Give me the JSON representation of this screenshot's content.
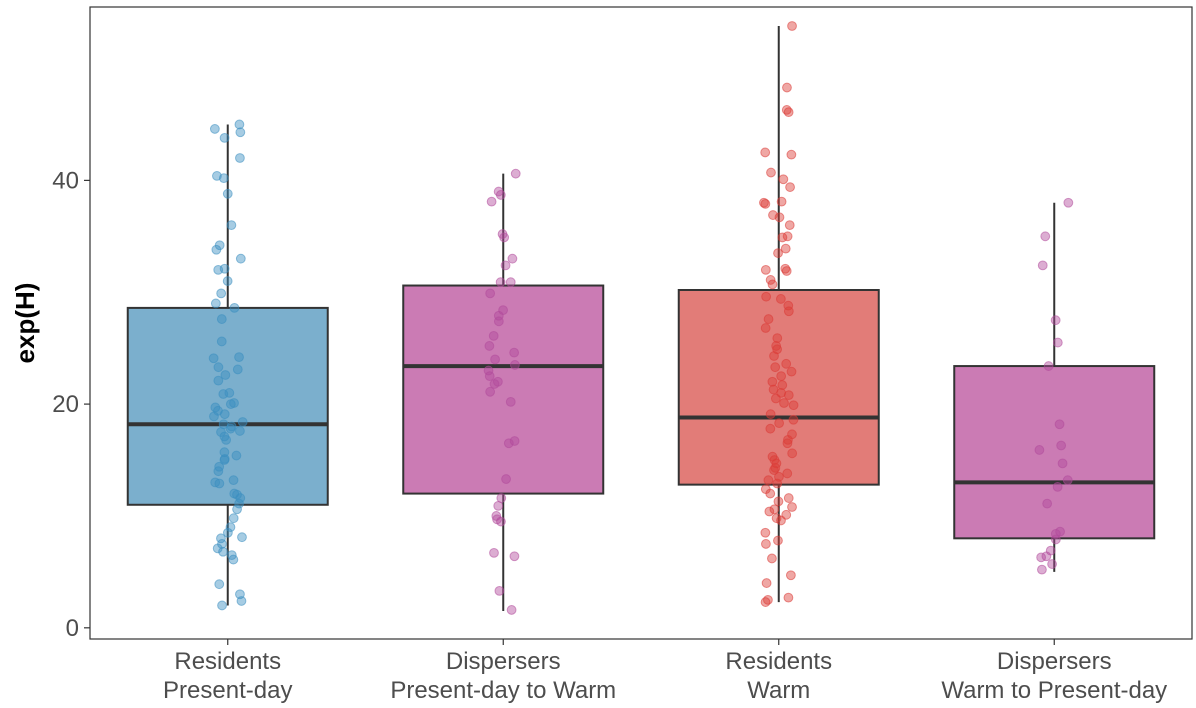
{
  "chart_data": {
    "type": "box",
    "title": "",
    "xlabel": "",
    "ylabel": "exp(H)",
    "ylim": [
      -1,
      55.5
    ],
    "yticks": [
      0,
      20,
      40
    ],
    "ytick_labels": [
      "0",
      "20",
      "40"
    ],
    "grid": false,
    "legend": "none",
    "categories": [
      {
        "line1": "Residents",
        "line2": "Present-day"
      },
      {
        "line1": "Dispersers",
        "line2": "Present-day to Warm"
      },
      {
        "line1": "Residents",
        "line2": "Warm"
      },
      {
        "line1": "Dispersers",
        "line2": "Warm to Present-day"
      }
    ],
    "series": [
      {
        "fill": "#7bafcd",
        "point_color": "#3a8ec0",
        "box": {
          "whisker_low": 2.0,
          "q1": 11.0,
          "median": 18.2,
          "q3": 28.6,
          "whisker_high": 45.0
        },
        "points": [
          45.0,
          44.3,
          44.6,
          43.8,
          42.0,
          40.4,
          40.2,
          38.8,
          36.0,
          34.2,
          33.8,
          33.0,
          32.1,
          32.0,
          31.0,
          29.9,
          29.0,
          28.6,
          27.6,
          25.6,
          24.1,
          24.2,
          23.3,
          23.1,
          22.6,
          22.1,
          21.0,
          20.9,
          20.1,
          20.0,
          19.7,
          19.4,
          19.1,
          18.9,
          18.4,
          18.2,
          18.0,
          17.8,
          17.6,
          17.5,
          17.1,
          16.8,
          15.7,
          15.4,
          15.1,
          15.0,
          14.4,
          14.0,
          13.2,
          13.0,
          12.9,
          12.0,
          11.9,
          11.6,
          11.1,
          10.6,
          9.8,
          9.0,
          8.5,
          8.1,
          8.0,
          7.5,
          7.1,
          6.8,
          6.5,
          6.1,
          3.9,
          3.0,
          2.4,
          2.0
        ]
      },
      {
        "fill": "#cb7bb4",
        "point_color": "#b14a9b",
        "box": {
          "whisker_low": 1.5,
          "q1": 12.0,
          "median": 23.4,
          "q3": 30.6,
          "whisker_high": 40.6
        },
        "points": [
          40.6,
          39.0,
          38.7,
          38.1,
          35.2,
          34.9,
          33.0,
          32.4,
          30.9,
          30.9,
          29.9,
          28.4,
          27.9,
          27.4,
          26.1,
          25.2,
          24.6,
          24.0,
          23.5,
          23.0,
          22.5,
          22.0,
          21.8,
          21.1,
          20.2,
          16.7,
          16.5,
          13.3,
          11.6,
          10.9,
          10.0,
          9.7,
          9.5,
          6.7,
          6.4,
          3.3,
          1.6
        ]
      },
      {
        "fill": "#e27c78",
        "point_color": "#db3b36",
        "box": {
          "whisker_low": 2.3,
          "q1": 12.8,
          "median": 18.8,
          "q3": 30.2,
          "whisker_high": 53.8
        },
        "points": [
          53.8,
          48.3,
          46.3,
          46.1,
          42.5,
          42.3,
          40.7,
          40.1,
          39.4,
          38.1,
          38.0,
          37.9,
          36.9,
          36.7,
          36.0,
          35.0,
          34.9,
          33.9,
          33.5,
          32.1,
          32.0,
          31.9,
          31.1,
          30.7,
          29.6,
          29.4,
          28.8,
          28.3,
          27.6,
          26.8,
          25.9,
          25.2,
          24.9,
          24.3,
          23.6,
          23.3,
          22.9,
          22.5,
          22.0,
          21.7,
          21.3,
          21.0,
          20.8,
          20.5,
          20.1,
          19.9,
          19.1,
          18.6,
          18.3,
          17.8,
          17.3,
          16.8,
          16.5,
          15.6,
          15.3,
          15.0,
          14.7,
          14.3,
          14.1,
          13.8,
          13.5,
          13.2,
          12.9,
          12.4,
          12.0,
          11.6,
          11.3,
          10.8,
          10.6,
          10.4,
          10.1,
          9.8,
          9.6,
          8.5,
          7.8,
          7.5,
          6.2,
          4.7,
          4.0,
          2.7,
          2.5,
          2.3
        ]
      },
      {
        "fill": "#cb7bb4",
        "point_color": "#b14a9b",
        "box": {
          "whisker_low": 5.0,
          "q1": 8.0,
          "median": 13.0,
          "q3": 23.4,
          "whisker_high": 38.0
        },
        "points": [
          38.0,
          35.0,
          32.4,
          27.5,
          25.5,
          23.4,
          18.2,
          16.3,
          15.9,
          14.7,
          13.2,
          12.6,
          11.1,
          8.6,
          8.4,
          7.9,
          6.9,
          6.4,
          6.3,
          5.7,
          5.2
        ]
      }
    ]
  }
}
